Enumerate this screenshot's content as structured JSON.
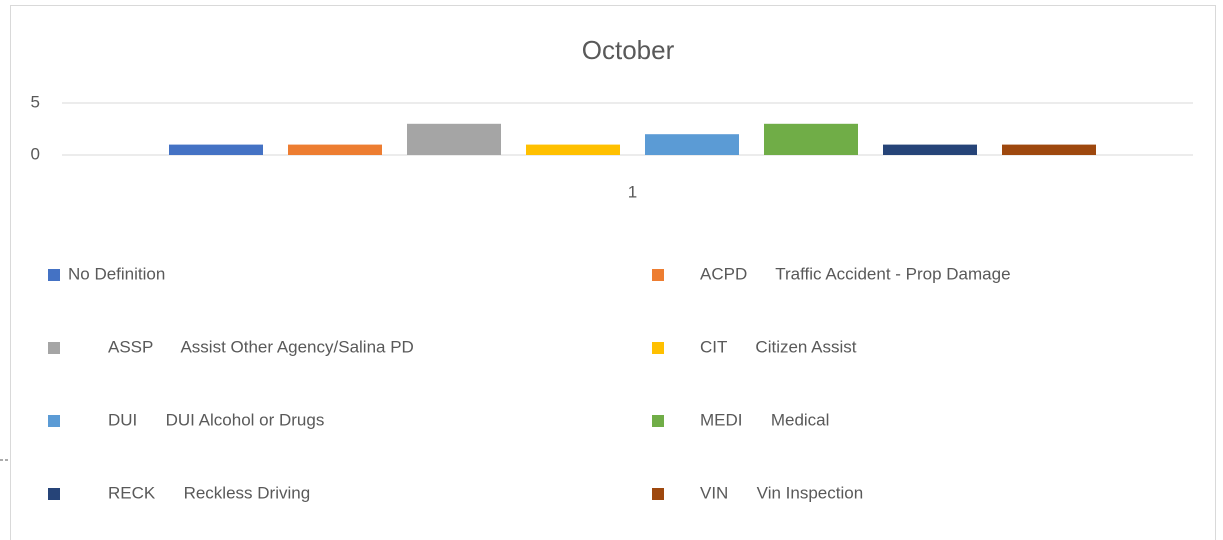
{
  "chart_data": {
    "type": "bar",
    "title": "October",
    "categories": [
      "1"
    ],
    "series": [
      {
        "name": "No Definition",
        "color": "#4472c4",
        "values": [
          1
        ]
      },
      {
        "name": "ACPD      Traffic Accident - Prop Damage",
        "color": "#ed7d31",
        "values": [
          1
        ]
      },
      {
        "name": "ASSP      Assist Other Agency/Salina PD",
        "color": "#a5a5a5",
        "values": [
          3
        ]
      },
      {
        "name": "CIT      Citizen Assist",
        "color": "#ffc000",
        "values": [
          1
        ]
      },
      {
        "name": "DUI      DUI Alcohol or Drugs",
        "color": "#5b9bd5",
        "values": [
          2
        ]
      },
      {
        "name": "MEDI      Medical",
        "color": "#70ad47",
        "values": [
          3
        ]
      },
      {
        "name": "RECK      Reckless Driving",
        "color": "#264478",
        "values": [
          1
        ]
      },
      {
        "name": "VIN      Vin Inspection",
        "color": "#9e480e",
        "values": [
          1
        ]
      }
    ],
    "ylim": [
      0,
      5
    ],
    "yticks": [
      0,
      5
    ],
    "grid": true,
    "legend": "bottom"
  }
}
